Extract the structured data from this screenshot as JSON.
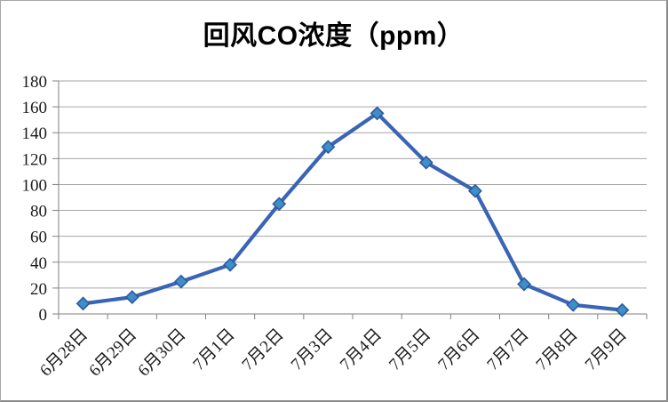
{
  "window": {
    "background": "#FFFFFF",
    "border_color": "#8C8C8C"
  },
  "chart_data": {
    "type": "line",
    "title": "回风CO浓度（ppm）",
    "categories": [
      "6月28日",
      "6月29日",
      "6月30日",
      "7月1日",
      "7月2日",
      "7月3日",
      "7月4日",
      "7月5日",
      "7月6日",
      "7月7日",
      "7月8日",
      "7月9日"
    ],
    "values": [
      8,
      13,
      25,
      38,
      85,
      129,
      155,
      117,
      95,
      23,
      7,
      3
    ],
    "xlabel": "",
    "ylabel": "",
    "ylim": [
      0,
      180
    ],
    "y_ticks": [
      0,
      20,
      40,
      60,
      80,
      100,
      120,
      140,
      160,
      180
    ],
    "grid": "horizontal",
    "legend": "none",
    "marker": "diamond",
    "colors": {
      "line": "#3A64B4",
      "marker_fill": "#3E8EC9",
      "marker_stroke": "#2D5A9E",
      "gridline": "#A6A6A6",
      "axis": "#808080",
      "title_text": "#000000"
    }
  }
}
